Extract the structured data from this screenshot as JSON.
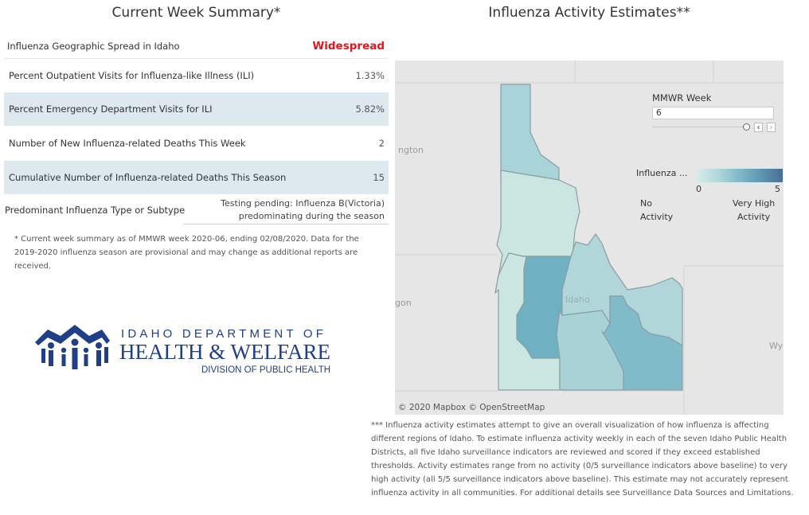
{
  "titles": {
    "left": "Current Week Summary*",
    "right": "Influenza Activity Estimates**"
  },
  "summary": {
    "rows": [
      {
        "label": "Influenza Geographic Spread in Idaho",
        "value": "Widespread"
      },
      {
        "label": "Percent Outpatient Visits for Influenza-like Illness (ILI)",
        "value": "1.33%"
      },
      {
        "label": "Percent Emergency Department Visits for ILI",
        "value": "5.82%"
      },
      {
        "label": "Number of New Influenza-related Deaths This Week",
        "value": "2"
      },
      {
        "label": "Cumulative Number of Influenza-related Deaths This Season",
        "value": "15"
      }
    ],
    "type": {
      "label": "Predominant Influenza Type or Subtype",
      "value_line1": "Testing pending: Influenza B(Victoria)",
      "value_line2": "predominating during the season"
    },
    "footnote": "* Current week summary as of MMWR week 2020-06, ending 02/08/2020. Data for the 2019-2020 influenza season are provisional and may change as additional reports are received."
  },
  "logo": {
    "line1": "IDAHO DEPARTMENT OF",
    "line2": "HEALTH & WELFARE",
    "line3": "DIVISION OF PUBLIC HEALTH",
    "color": "#1f3f86"
  },
  "map": {
    "state_labels": {
      "washington": "ngton",
      "oregon": "gon",
      "idaho": "Idaho",
      "wyoming": "Wy"
    },
    "credit": "© 2020 Mapbox © OpenStreetMap",
    "filter": {
      "label": "MMWR Week",
      "value": "6"
    },
    "legend": {
      "title": "Influenza ...",
      "min": "0",
      "max": "5",
      "low_line1": "No",
      "low_line2": "Activity",
      "high_line1": "Very High",
      "high_line2": "Activity"
    },
    "district_colors": {
      "district1": "#a8d4d9",
      "district2": "#cbe6e1",
      "district3": "#cbe6e1",
      "district4": "#6fb0c3",
      "district5": "#a9d2d7",
      "district6": "#b0d6da",
      "district7": "#7fbbc9"
    },
    "footnote": "*** Influenza activity estimates attempt to give an overall visualization of how influenza is affecting different regions of Idaho. To estimate influenza activity weekly in each of the seven Idaho Public Health Districts, all five Idaho surveillance indicators are reviewed and scored if they exceed established thresholds. Activity estimates range from no activity (0/5 surveillance indicators above baseline) to very high activity (all 5/5 surveillance indicators above baseline). This estimate may not accurately represent influenza activity in all communities. For additional details see Surveillance Data Sources and Limitations."
  }
}
